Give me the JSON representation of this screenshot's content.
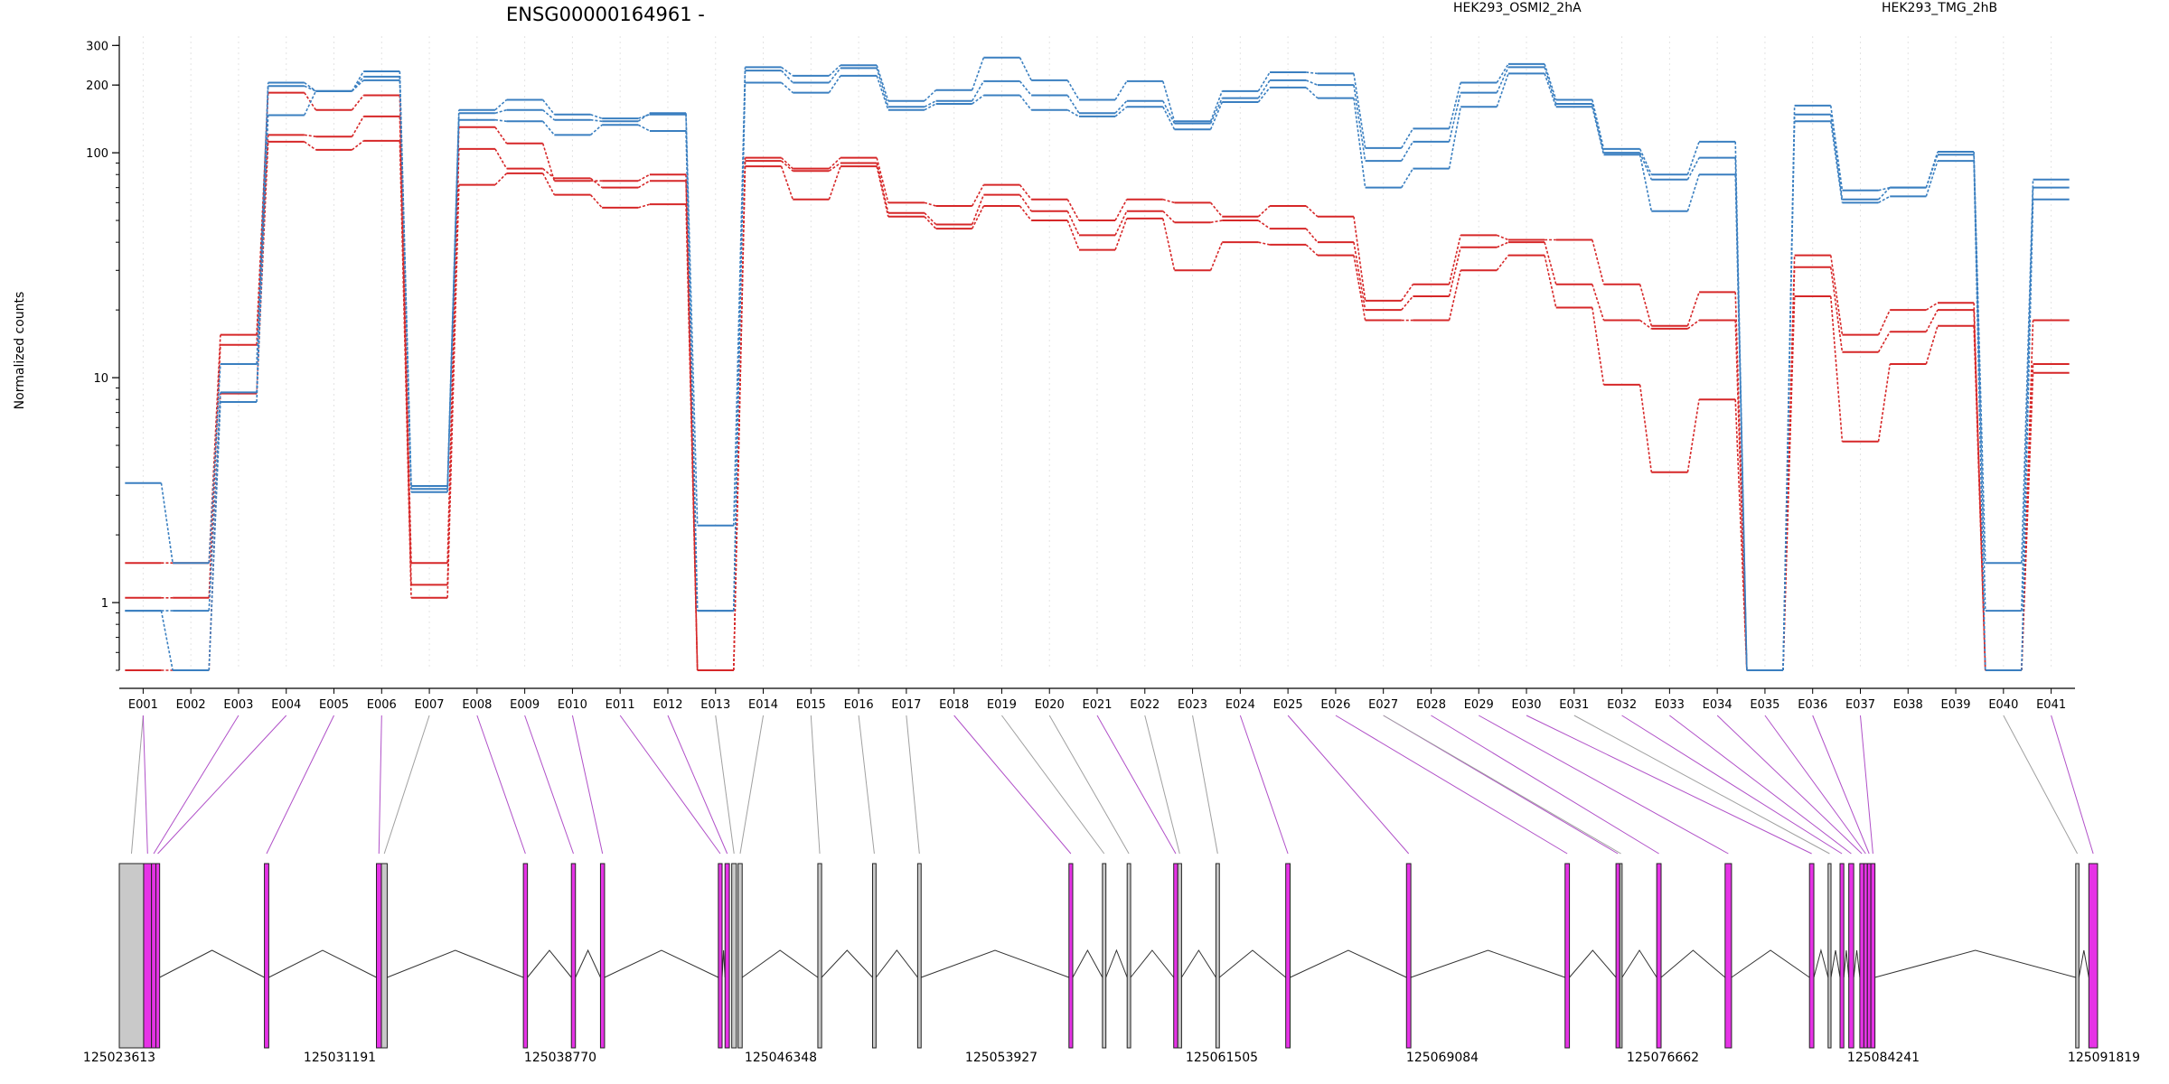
{
  "chart_data": {
    "type": "line",
    "title": "ENSG00000164961 -",
    "xlabel": "",
    "ylabel": "Normalized counts",
    "yscale": "log",
    "ylim": [
      0.5,
      330
    ],
    "yticks": [
      1,
      10,
      100,
      200,
      300
    ],
    "grid": "vertical dotted lines at each exon",
    "legend_position": "top",
    "legend": [
      {
        "label": "HEK293_OSMI2_2hA",
        "color": "#d62728"
      },
      {
        "label": "HEK293_TMG_2hB",
        "color": "#3a7fc0"
      }
    ],
    "categories": [
      "E001",
      "E002",
      "E003",
      "E004",
      "E005",
      "E006",
      "E007",
      "E008",
      "E009",
      "E010",
      "E011",
      "E012",
      "E013",
      "E014",
      "E015",
      "E016",
      "E017",
      "E018",
      "E019",
      "E020",
      "E021",
      "E022",
      "E023",
      "E024",
      "E025",
      "E026",
      "E027",
      "E028",
      "E029",
      "E030",
      "E031",
      "E032",
      "E033",
      "E034",
      "E035",
      "E036",
      "E037",
      "E038",
      "E039",
      "E040",
      "E041"
    ],
    "series": [
      {
        "group": 0,
        "values": [
          1.5,
          1.5,
          15.5,
          185,
          155,
          180,
          1.5,
          130,
          110,
          75,
          75,
          80,
          0.5,
          95,
          85,
          95,
          60,
          58,
          72,
          62,
          50,
          62,
          60,
          52,
          58,
          52,
          22,
          26,
          43,
          41,
          41,
          26,
          17,
          24,
          0.5,
          35,
          15.5,
          20,
          21.5,
          0.5,
          18
        ]
      },
      {
        "group": 0,
        "values": [
          1.05,
          1.05,
          14,
          120,
          118,
          145,
          1.2,
          104,
          85,
          77,
          70,
          75,
          0.5,
          92,
          83,
          90,
          54,
          48,
          65,
          55,
          43,
          55,
          49,
          50,
          46,
          40,
          20,
          23,
          38,
          40,
          26,
          18,
          16.5,
          18,
          0.5,
          31,
          13,
          16,
          20,
          0.5,
          11.5
        ]
      },
      {
        "group": 0,
        "values": [
          0.5,
          0.5,
          8.5,
          112,
          103,
          113,
          1.05,
          72,
          81,
          65,
          57,
          59,
          0.5,
          87,
          62,
          87,
          52,
          46,
          58,
          50,
          37,
          51,
          30,
          40,
          39,
          35,
          18,
          18,
          30,
          35,
          20.5,
          9.3,
          3.8,
          8,
          0.5,
          23,
          5.2,
          11.5,
          17,
          0.5,
          10.5
        ]
      },
      {
        "group": 1,
        "values": [
          3.4,
          1.5,
          11.5,
          205,
          188,
          230,
          3.3,
          155,
          172,
          148,
          142,
          148,
          2.2,
          240,
          220,
          245,
          170,
          190,
          265,
          210,
          172,
          208,
          138,
          188,
          228,
          225,
          105,
          128,
          205,
          248,
          172,
          104,
          80,
          112,
          0.5,
          162,
          68,
          70,
          101,
          1.5,
          76
        ]
      },
      {
        "group": 1,
        "values": [
          0.92,
          0.92,
          8.6,
          198,
          188,
          218,
          3.2,
          150,
          155,
          140,
          138,
          150,
          0.92,
          232,
          205,
          238,
          160,
          170,
          208,
          180,
          150,
          170,
          135,
          175,
          210,
          200,
          92,
          112,
          185,
          240,
          165,
          100,
          76,
          95,
          0.5,
          148,
          62,
          70,
          98,
          0.92,
          70
        ]
      },
      {
        "group": 1,
        "values": [
          0.92,
          0.5,
          7.8,
          147,
          188,
          210,
          3.1,
          140,
          138,
          120,
          133,
          125,
          0.92,
          205,
          185,
          220,
          155,
          165,
          180,
          155,
          145,
          160,
          127,
          168,
          195,
          175,
          70,
          85,
          160,
          225,
          160,
          98,
          55,
          80,
          0.5,
          138,
          60,
          64,
          92,
          0.5,
          62
        ]
      }
    ],
    "exon_label_color": "#000000"
  },
  "gene_track": {
    "coordinates": [
      "125023613",
      "125031191",
      "125038770",
      "125046348",
      "125053927",
      "125061505",
      "125069084",
      "125076662",
      "125084241",
      "125091819"
    ],
    "range": [
      125023613,
      125091819
    ],
    "highlight_color": "#e633e6",
    "plain_color": "#c9c9c9",
    "connector_colors": {
      "highlight": "#b050c8",
      "plain": "#a0a0a0"
    },
    "features": [
      {
        "start": 125023613,
        "end": 125024450,
        "kind": "plain",
        "exon": 0
      },
      {
        "start": 125024450,
        "end": 125024720,
        "kind": "highlight",
        "exon": 0
      },
      {
        "start": 125024720,
        "end": 125024870,
        "kind": "highlight",
        "exon": 2
      },
      {
        "start": 125024870,
        "end": 125025000,
        "kind": "highlight",
        "exon": 3
      },
      {
        "start": 125028600,
        "end": 125028750,
        "kind": "highlight",
        "exon": 4
      },
      {
        "start": 125032450,
        "end": 125032620,
        "kind": "highlight",
        "exon": 5
      },
      {
        "start": 125032620,
        "end": 125032820,
        "kind": "plain",
        "exon": 6
      },
      {
        "start": 125037500,
        "end": 125037640,
        "kind": "highlight",
        "exon": 7
      },
      {
        "start": 125039150,
        "end": 125039290,
        "kind": "highlight",
        "exon": 8
      },
      {
        "start": 125040150,
        "end": 125040290,
        "kind": "highlight",
        "exon": 9
      },
      {
        "start": 125044200,
        "end": 125044330,
        "kind": "highlight",
        "exon": 10
      },
      {
        "start": 125044430,
        "end": 125044580,
        "kind": "highlight",
        "exon": 11
      },
      {
        "start": 125044660,
        "end": 125044820,
        "kind": "plain",
        "exon": 12
      },
      {
        "start": 125044880,
        "end": 125045020,
        "kind": "plain",
        "exon": 13
      },
      {
        "start": 125047620,
        "end": 125047750,
        "kind": "plain",
        "exon": 14
      },
      {
        "start": 125049500,
        "end": 125049620,
        "kind": "plain",
        "exon": 15
      },
      {
        "start": 125051050,
        "end": 125051170,
        "kind": "plain",
        "exon": 16
      },
      {
        "start": 125056250,
        "end": 125056380,
        "kind": "highlight",
        "exon": 17
      },
      {
        "start": 125057400,
        "end": 125057520,
        "kind": "plain",
        "exon": 18
      },
      {
        "start": 125058250,
        "end": 125058370,
        "kind": "plain",
        "exon": 19
      },
      {
        "start": 125059850,
        "end": 125059990,
        "kind": "highlight",
        "exon": 20
      },
      {
        "start": 125059990,
        "end": 125060120,
        "kind": "plain",
        "exon": 21
      },
      {
        "start": 125061300,
        "end": 125061420,
        "kind": "plain",
        "exon": 22
      },
      {
        "start": 125063700,
        "end": 125063850,
        "kind": "highlight",
        "exon": 23
      },
      {
        "start": 125067850,
        "end": 125068000,
        "kind": "highlight",
        "exon": 24
      },
      {
        "start": 125073300,
        "end": 125073450,
        "kind": "highlight",
        "exon": 25
      },
      {
        "start": 125075050,
        "end": 125075180,
        "kind": "highlight",
        "exon": 26
      },
      {
        "start": 125075180,
        "end": 125075260,
        "kind": "plain",
        "exon": 26
      },
      {
        "start": 125076450,
        "end": 125076600,
        "kind": "highlight",
        "exon": 27
      },
      {
        "start": 125078800,
        "end": 125079020,
        "kind": "highlight",
        "exon": 28
      },
      {
        "start": 125081700,
        "end": 125081850,
        "kind": "highlight",
        "exon": 29
      },
      {
        "start": 125082340,
        "end": 125082440,
        "kind": "plain",
        "exon": 30
      },
      {
        "start": 125082750,
        "end": 125082880,
        "kind": "highlight",
        "exon": 31
      },
      {
        "start": 125083050,
        "end": 125083220,
        "kind": "highlight",
        "exon": 32
      },
      {
        "start": 125083430,
        "end": 125083570,
        "kind": "highlight",
        "exon": 33
      },
      {
        "start": 125083570,
        "end": 125083690,
        "kind": "highlight",
        "exon": 34
      },
      {
        "start": 125083690,
        "end": 125083810,
        "kind": "highlight",
        "exon": 35
      },
      {
        "start": 125083810,
        "end": 125083950,
        "kind": "highlight",
        "exon": 36
      },
      {
        "start": 125090850,
        "end": 125090960,
        "kind": "plain",
        "exon": 39
      },
      {
        "start": 125091300,
        "end": 125091600,
        "kind": "highlight",
        "exon": 40
      }
    ]
  }
}
